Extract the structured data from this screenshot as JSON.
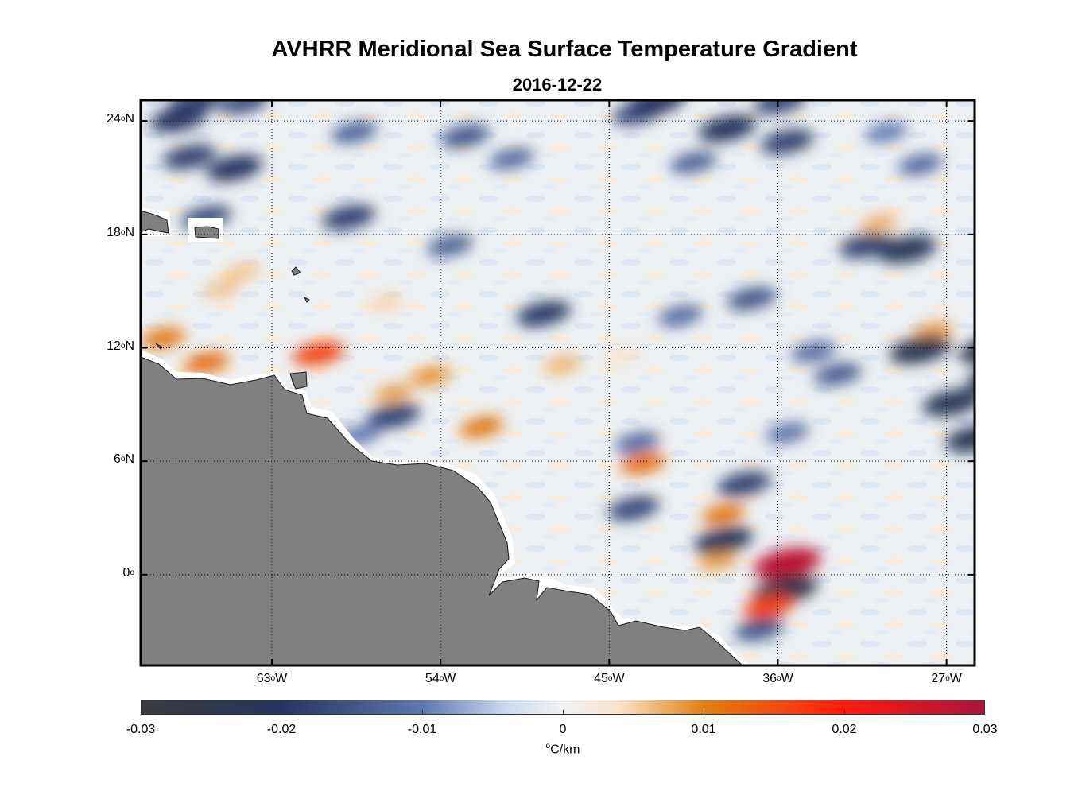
{
  "title": "AVHRR Meridional Sea Surface Temperature Gradient",
  "date": "2016-12-22",
  "map": {
    "lon_range": [
      -70,
      -25.5
    ],
    "lat_range": [
      -4.8,
      25.1
    ],
    "lat_ticks": [
      {
        "value": 24,
        "label": "24",
        "hemi": "N"
      },
      {
        "value": 18,
        "label": "18",
        "hemi": "N"
      },
      {
        "value": 12,
        "label": "12",
        "hemi": "N"
      },
      {
        "value": 6,
        "label": "6",
        "hemi": "N"
      },
      {
        "value": 0,
        "label": "0",
        "hemi": ""
      }
    ],
    "lon_ticks": [
      {
        "value": -63,
        "label": "63",
        "hemi": "W"
      },
      {
        "value": -54,
        "label": "54",
        "hemi": "W"
      },
      {
        "value": -45,
        "label": "45",
        "hemi": "W"
      },
      {
        "value": -36,
        "label": "36",
        "hemi": "W"
      },
      {
        "value": -27,
        "label": "27",
        "hemi": "W"
      }
    ],
    "land_color": "#808080",
    "features": [
      {
        "lon": -51.8,
        "lat": 7.8,
        "value": 0.011
      },
      {
        "lon": -54.5,
        "lat": 10.5,
        "value": 0.009
      },
      {
        "lon": -56.5,
        "lat": 9.6,
        "value": 0.008
      },
      {
        "lon": -60.5,
        "lat": 11.7,
        "value": 0.016
      },
      {
        "lon": -66.5,
        "lat": 11.2,
        "value": 0.012
      },
      {
        "lon": -68.8,
        "lat": 12.5,
        "value": 0.011
      },
      {
        "lon": -47.5,
        "lat": 11.1,
        "value": 0.007
      },
      {
        "lon": -43.2,
        "lat": 5.9,
        "value": 0.012
      },
      {
        "lon": -38.9,
        "lat": 3.2,
        "value": 0.011
      },
      {
        "lon": -38.9,
        "lat": 1.8,
        "value": -0.022
      },
      {
        "lon": -39.2,
        "lat": 0.7,
        "value": 0.008
      },
      {
        "lon": -35.5,
        "lat": 0.6,
        "value": 0.028
      },
      {
        "lon": -35.6,
        "lat": -0.8,
        "value": -0.026
      },
      {
        "lon": -36.5,
        "lat": -1.7,
        "value": 0.016
      },
      {
        "lon": -27.7,
        "lat": 12.9,
        "value": 0.008
      },
      {
        "lon": -30.6,
        "lat": 18.6,
        "value": 0.007
      },
      {
        "lon": -64.6,
        "lat": 16.0,
        "value": 0.006
      },
      {
        "lon": -65.7,
        "lat": 15.1,
        "value": 0.006
      },
      {
        "lon": -56.9,
        "lat": 14.4,
        "value": 0.005
      },
      {
        "lon": -44.2,
        "lat": 11.6,
        "value": 0.004
      },
      {
        "lon": -56.5,
        "lat": 8.4,
        "value": -0.018
      },
      {
        "lon": -58.3,
        "lat": 7.4,
        "value": -0.01
      },
      {
        "lon": -48.5,
        "lat": 13.8,
        "value": -0.019
      },
      {
        "lon": -43.5,
        "lat": 7.0,
        "value": -0.012
      },
      {
        "lon": -43.7,
        "lat": 3.5,
        "value": -0.017
      },
      {
        "lon": -37.8,
        "lat": 4.8,
        "value": -0.018
      },
      {
        "lon": -35.5,
        "lat": 7.5,
        "value": -0.011
      },
      {
        "lon": -37.0,
        "lat": -2.9,
        "value": -0.015
      },
      {
        "lon": -28.4,
        "lat": 11.9,
        "value": -0.024
      },
      {
        "lon": -24.6,
        "lat": 11.9,
        "value": -0.026
      },
      {
        "lon": -24.4,
        "lat": 10.4,
        "value": -0.02
      },
      {
        "lon": -26.7,
        "lat": 9.1,
        "value": -0.022
      },
      {
        "lon": -25.5,
        "lat": 7.2,
        "value": -0.022
      },
      {
        "lon": -32.8,
        "lat": 10.6,
        "value": -0.014
      },
      {
        "lon": -34.1,
        "lat": 11.8,
        "value": -0.012
      },
      {
        "lon": -29.1,
        "lat": 17.2,
        "value": -0.022
      },
      {
        "lon": -31.3,
        "lat": 17.4,
        "value": -0.018
      },
      {
        "lon": -37.4,
        "lat": 14.6,
        "value": -0.015
      },
      {
        "lon": -41.2,
        "lat": 13.7,
        "value": -0.012
      },
      {
        "lon": -38.7,
        "lat": 23.6,
        "value": -0.021
      },
      {
        "lon": -35.5,
        "lat": 22.9,
        "value": -0.018
      },
      {
        "lon": -40.5,
        "lat": 21.8,
        "value": -0.013
      },
      {
        "lon": -43.5,
        "lat": 24.4,
        "value": -0.016
      },
      {
        "lon": -42.5,
        "lat": 25.0,
        "value": -0.02
      },
      {
        "lon": -35.9,
        "lat": 25.0,
        "value": -0.017
      },
      {
        "lon": -65.0,
        "lat": 21.5,
        "value": -0.02
      },
      {
        "lon": -67.4,
        "lat": 22.1,
        "value": -0.018
      },
      {
        "lon": -68.0,
        "lat": 24.1,
        "value": -0.02
      },
      {
        "lon": -67.1,
        "lat": 25.0,
        "value": -0.018
      },
      {
        "lon": -64.5,
        "lat": 25.0,
        "value": -0.016
      },
      {
        "lon": -58.6,
        "lat": 23.4,
        "value": -0.013
      },
      {
        "lon": -52.7,
        "lat": 23.2,
        "value": -0.015
      },
      {
        "lon": -50.2,
        "lat": 22.0,
        "value": -0.012
      },
      {
        "lon": -58.9,
        "lat": 18.9,
        "value": -0.018
      },
      {
        "lon": -66.5,
        "lat": 18.9,
        "value": -0.016
      },
      {
        "lon": -53.5,
        "lat": 17.4,
        "value": -0.013
      },
      {
        "lon": -28.4,
        "lat": 21.7,
        "value": -0.012
      },
      {
        "lon": -30.2,
        "lat": 23.4,
        "value": -0.01
      }
    ]
  },
  "colorbar": {
    "min": -0.03,
    "max": 0.03,
    "tick_labels": [
      "-0.03",
      "-0.02",
      "-0.01",
      "0",
      "0.01",
      "0.02",
      "0.03"
    ],
    "unit": "C/km",
    "unit_prefix": "o",
    "stops": [
      {
        "value": -0.03,
        "color": "#3a3a3e"
      },
      {
        "value": -0.02,
        "color": "#25365e"
      },
      {
        "value": -0.01,
        "color": "#5d77ad"
      },
      {
        "value": -0.004,
        "color": "#cbdbf0"
      },
      {
        "value": 0,
        "color": "#f0f3f3"
      },
      {
        "value": 0.004,
        "color": "#fae3c8"
      },
      {
        "value": 0.01,
        "color": "#e08010"
      },
      {
        "value": 0.02,
        "color": "#ff1c0c"
      },
      {
        "value": 0.03,
        "color": "#a8143e"
      }
    ]
  }
}
